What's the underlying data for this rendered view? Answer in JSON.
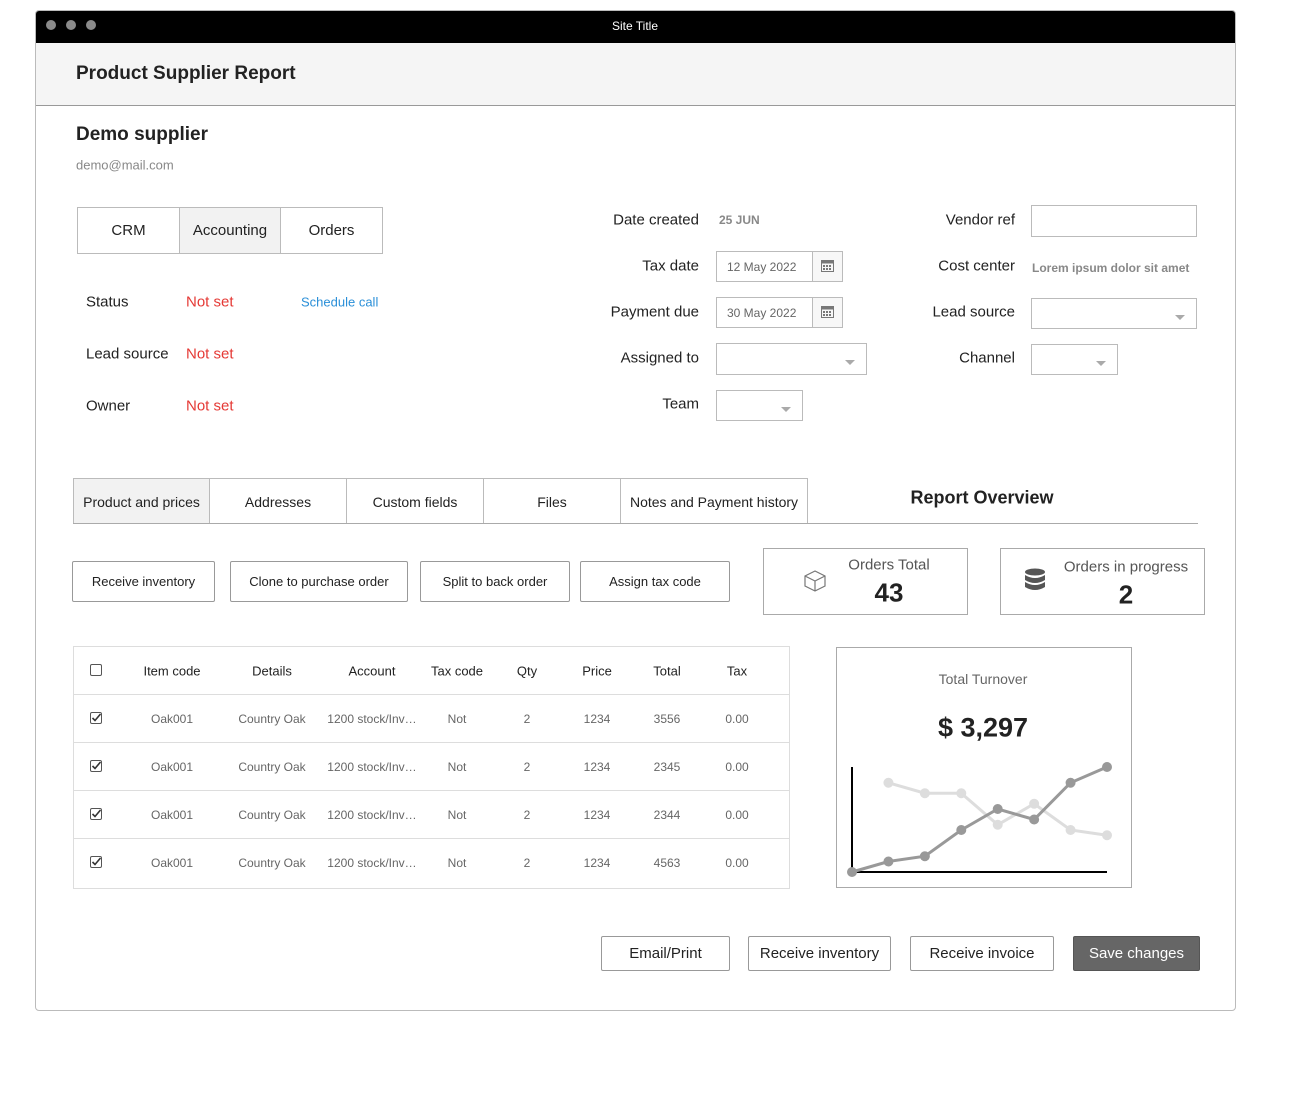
{
  "window": {
    "title": "Site Title"
  },
  "header": {
    "title": "Product Supplier Report"
  },
  "supplier": {
    "name": "Demo supplier",
    "email": "demo@mail.com"
  },
  "tabs_top": [
    "CRM",
    "Accounting",
    "Orders"
  ],
  "status_fields": [
    {
      "label": "Status",
      "value": "Not set",
      "action": "Schedule call"
    },
    {
      "label": "Lead source",
      "value": "Not set"
    },
    {
      "label": "Owner",
      "value": "Not set"
    }
  ],
  "form_left": [
    {
      "label": "Date created",
      "value": "25 JUN"
    },
    {
      "label": "Tax date",
      "value": "12 May 2022"
    },
    {
      "label": "Payment due",
      "value": "30 May 2022"
    },
    {
      "label": "Assigned to"
    },
    {
      "label": "Team"
    }
  ],
  "form_right": [
    {
      "label": "Vendor ref"
    },
    {
      "label": "Cost center",
      "value": "Lorem ipsum dolor sit amet"
    },
    {
      "label": "Lead source"
    },
    {
      "label": "Channel"
    }
  ],
  "tabs_bottom": [
    "Product and prices",
    "Addresses",
    "Custom fields",
    "Files",
    "Notes and Payment history"
  ],
  "report_overview": {
    "title": "Report Overview",
    "orders_total": {
      "label": "Orders Total",
      "value": 43
    },
    "orders_in_progress": {
      "label": "Orders in progress",
      "value": 2
    }
  },
  "actions": [
    "Receive inventory",
    "Clone to purchase order",
    "Split to back order",
    "Assign tax code"
  ],
  "table": {
    "columns": [
      "Item code",
      "Details",
      "Account",
      "Tax code",
      "Qty",
      "Price",
      "Total",
      "Tax"
    ],
    "rows": [
      [
        "Oak001",
        "Country Oak",
        "1200 stock/Inv…",
        "Not",
        2,
        1234,
        3556,
        "0.00"
      ],
      [
        "Oak001",
        "Country Oak",
        "1200 stock/Inv…",
        "Not",
        2,
        1234,
        2345,
        "0.00"
      ],
      [
        "Oak001",
        "Country Oak",
        "1200 stock/Inv…",
        "Not",
        2,
        1234,
        2344,
        "0.00"
      ],
      [
        "Oak001",
        "Country Oak",
        "1200 stock/Inv…",
        "Not",
        2,
        1234,
        4563,
        "0.00"
      ]
    ]
  },
  "turnover": {
    "title": "Total Turnover",
    "total": "$ 3,297",
    "chart_data": {
      "type": "line",
      "categories": [
        null,
        null,
        null,
        null,
        null,
        null,
        null,
        null
      ],
      "ylim": [
        0,
        100
      ],
      "series": [
        {
          "color": "#999999",
          "values": [
            0,
            10,
            15,
            40,
            60,
            50,
            85,
            100
          ]
        },
        {
          "color": "#dddddd",
          "values": [
            null,
            85,
            75,
            75,
            45,
            65,
            40,
            35
          ]
        }
      ]
    }
  },
  "footer_buttons": [
    "Email/Print",
    "Receive inventory",
    "Receive invoice",
    "Save changes"
  ]
}
